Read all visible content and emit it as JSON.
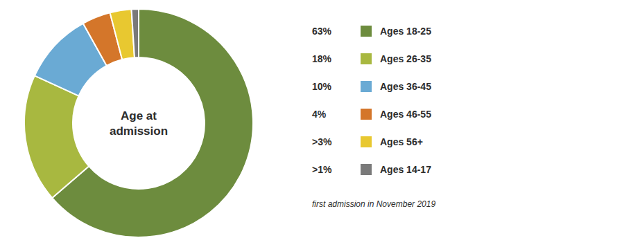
{
  "chart_data": {
    "type": "pie",
    "title": "Age at\nadmission",
    "subtitle": "first admission in November 2019",
    "categories": [
      "Ages 18-25",
      "Ages 26-35",
      "Ages 36-45",
      "Ages 46-55",
      "Ages 56+",
      "Ages 14-17"
    ],
    "values": [
      63,
      18,
      10,
      4,
      3,
      1
    ],
    "value_labels": [
      "63%",
      "18%",
      "10%",
      "4%",
      ">3%",
      ">1%"
    ],
    "colors": [
      "#6d8c3e",
      "#a8b840",
      "#6aaad4",
      "#d4762a",
      "#e8c830",
      "#7a7a7a"
    ],
    "legend": "right"
  }
}
